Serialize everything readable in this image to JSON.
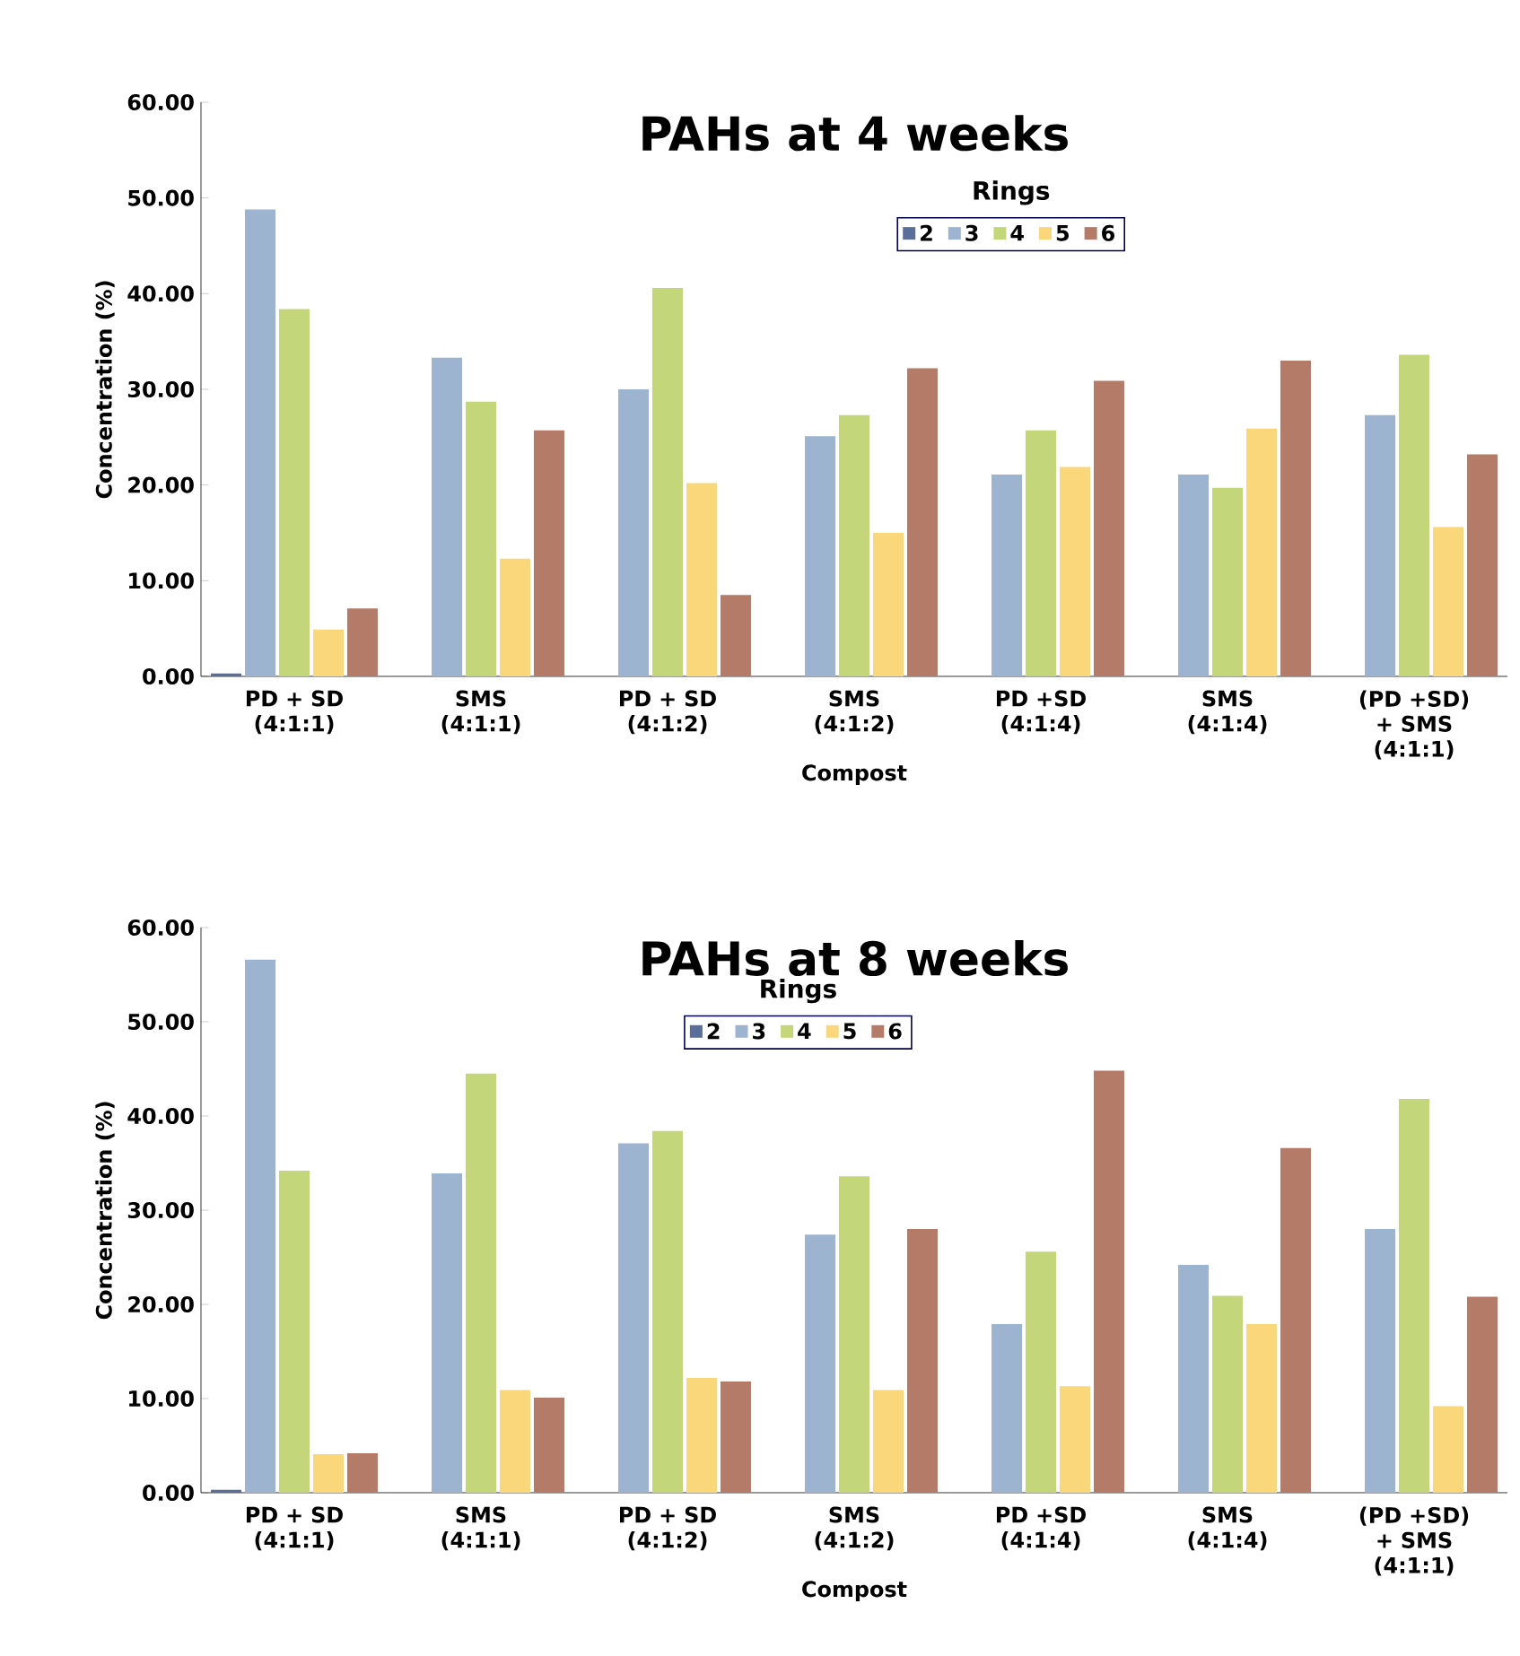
{
  "chart_data": [
    {
      "type": "bar",
      "title": "PAHs at 4 weeks",
      "xlabel": "Compost",
      "ylabel": "Concentration (%)",
      "legend_title": "Rings",
      "legend": "top",
      "categories": [
        "PD + SD (4:1:1)",
        "SMS (4:1:1)",
        "PD + SD (4:1:2)",
        "SMS (4:1:2)",
        "PD +SD (4:1:4)",
        "SMS (4:1:4)",
        "(PD +SD) + SMS (4:1:1)"
      ],
      "ylim": [
        0,
        60
      ],
      "yticks": [
        {
          "value": 0,
          "label": "0.00"
        },
        {
          "value": 10,
          "label": "10.00"
        },
        {
          "value": 20,
          "label": "20.00"
        },
        {
          "value": 30,
          "label": "30.00"
        },
        {
          "value": 40,
          "label": "40.00"
        },
        {
          "value": 50,
          "label": "50.00"
        },
        {
          "value": 60,
          "label": "60.00"
        }
      ],
      "series": [
        {
          "name": "2",
          "color": "#5b6e99",
          "values": [
            0.3,
            0,
            0,
            0,
            0,
            0,
            0
          ]
        },
        {
          "name": "3",
          "color": "#9db4d0",
          "values": [
            48.8,
            33.3,
            30.0,
            25.1,
            21.1,
            21.1,
            27.3
          ]
        },
        {
          "name": "4",
          "color": "#c3d67a",
          "values": [
            38.4,
            28.7,
            40.6,
            27.3,
            25.7,
            19.7,
            33.6
          ]
        },
        {
          "name": "5",
          "color": "#f9d77a",
          "values": [
            4.9,
            12.3,
            20.2,
            15.0,
            21.9,
            25.9,
            15.6
          ]
        },
        {
          "name": "6",
          "color": "#b57b69",
          "values": [
            7.1,
            25.7,
            8.5,
            32.2,
            30.9,
            33.0,
            23.2
          ]
        }
      ]
    },
    {
      "type": "bar",
      "title": "PAHs at 8 weeks",
      "xlabel": "Compost",
      "ylabel": "Concentration (%)",
      "legend_title": "Rings",
      "legend": "top",
      "categories": [
        "PD + SD (4:1:1)",
        "SMS (4:1:1)",
        "PD + SD (4:1:2)",
        "SMS (4:1:2)",
        "PD +SD (4:1:4)",
        "SMS (4:1:4)",
        "(PD +SD) + SMS (4:1:1)"
      ],
      "ylim": [
        0,
        60
      ],
      "yticks": [
        {
          "value": 0,
          "label": "0.00"
        },
        {
          "value": 10,
          "label": "10.00"
        },
        {
          "value": 20,
          "label": "20.00"
        },
        {
          "value": 30,
          "label": "30.00"
        },
        {
          "value": 40,
          "label": "40.00"
        },
        {
          "value": 50,
          "label": "50.00"
        },
        {
          "value": 60,
          "label": "60.00"
        }
      ],
      "series": [
        {
          "name": "2",
          "color": "#5b6e99",
          "values": [
            0.3,
            0,
            0,
            0,
            0,
            0,
            0
          ]
        },
        {
          "name": "3",
          "color": "#9db4d0",
          "values": [
            56.6,
            33.9,
            37.1,
            27.4,
            17.9,
            24.2,
            28.0
          ]
        },
        {
          "name": "4",
          "color": "#c3d67a",
          "values": [
            34.2,
            44.5,
            38.4,
            33.6,
            25.6,
            20.9,
            41.8
          ]
        },
        {
          "name": "5",
          "color": "#f9d77a",
          "values": [
            4.1,
            10.9,
            12.2,
            10.9,
            11.3,
            17.9,
            9.2
          ]
        },
        {
          "name": "6",
          "color": "#b57b69",
          "values": [
            4.2,
            10.1,
            11.8,
            28.0,
            44.8,
            36.6,
            20.8
          ]
        }
      ]
    }
  ]
}
